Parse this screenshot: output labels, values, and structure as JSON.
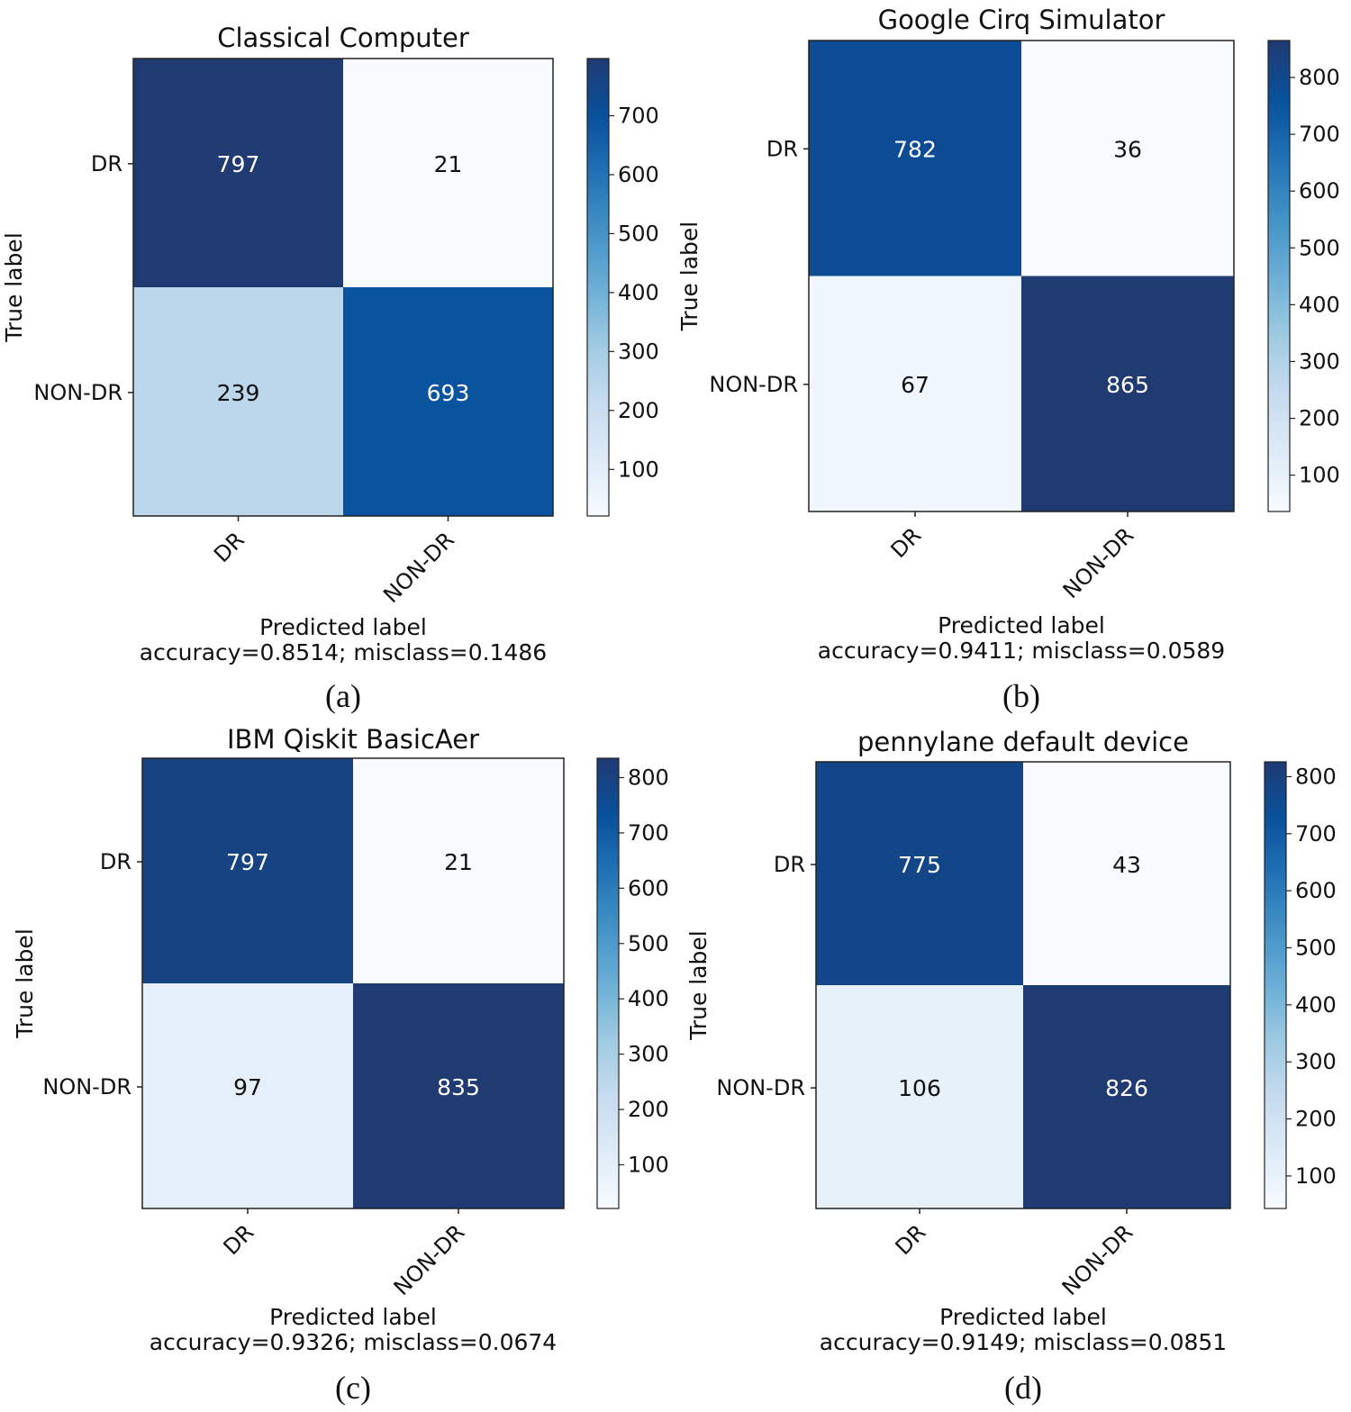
{
  "chart_data": [
    {
      "type": "heatmap",
      "title": "Classical Computer",
      "caption": "(a)",
      "xlabel": "Predicted label",
      "note": "accuracy=0.8514; misclass=0.1486",
      "ylabel": "True label",
      "x_categories": [
        "DR",
        "NON-DR"
      ],
      "y_categories": [
        "DR",
        "NON-DR"
      ],
      "matrix": [
        [
          797,
          21
        ],
        [
          239,
          693
        ]
      ],
      "colorbar": {
        "min": 21,
        "max": 797,
        "ticks": [
          100,
          200,
          300,
          400,
          500,
          600,
          700
        ],
        "colormap": "Blues"
      }
    },
    {
      "type": "heatmap",
      "title": "Google Cirq Simulator",
      "caption": "(b)",
      "xlabel": "Predicted label",
      "note": "accuracy=0.9411; misclass=0.0589",
      "ylabel": "True label",
      "x_categories": [
        "DR",
        "NON-DR"
      ],
      "y_categories": [
        "DR",
        "NON-DR"
      ],
      "matrix": [
        [
          782,
          36
        ],
        [
          67,
          865
        ]
      ],
      "colorbar": {
        "min": 36,
        "max": 865,
        "ticks": [
          100,
          200,
          300,
          400,
          500,
          600,
          700,
          800
        ],
        "colormap": "Blues"
      }
    },
    {
      "type": "heatmap",
      "title": "IBM Qiskit BasicAer",
      "caption": "(c)",
      "xlabel": "Predicted label",
      "note": "accuracy=0.9326; misclass=0.0674",
      "ylabel": "True label",
      "x_categories": [
        "DR",
        "NON-DR"
      ],
      "y_categories": [
        "DR",
        "NON-DR"
      ],
      "matrix": [
        [
          797,
          21
        ],
        [
          97,
          835
        ]
      ],
      "colorbar": {
        "min": 21,
        "max": 835,
        "ticks": [
          100,
          200,
          300,
          400,
          500,
          600,
          700,
          800
        ],
        "colormap": "Blues"
      }
    },
    {
      "type": "heatmap",
      "title": "pennylane default device",
      "caption": "(d)",
      "xlabel": "Predicted label",
      "note": "accuracy=0.9149; misclass=0.0851",
      "ylabel": "True label",
      "x_categories": [
        "DR",
        "NON-DR"
      ],
      "y_categories": [
        "DR",
        "NON-DR"
      ],
      "matrix": [
        [
          775,
          43
        ],
        [
          106,
          826
        ]
      ],
      "colorbar": {
        "min": 43,
        "max": 826,
        "ticks": [
          100,
          200,
          300,
          400,
          500,
          600,
          700,
          800
        ],
        "colormap": "Blues"
      }
    }
  ]
}
